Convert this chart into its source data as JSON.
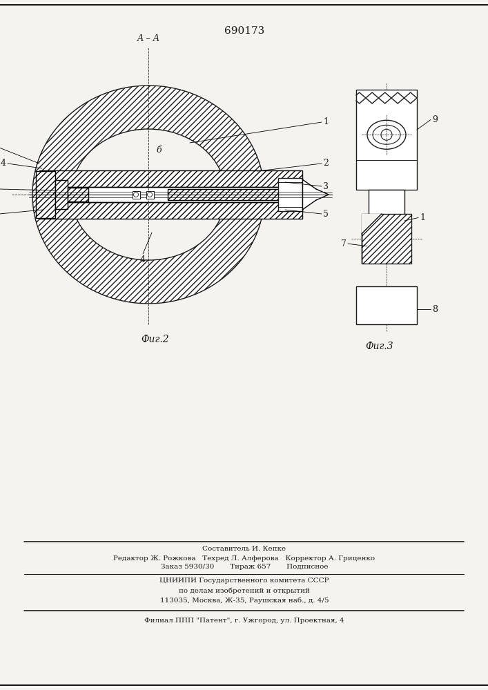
{
  "patent_number": "690173",
  "fig2_label": "Фиг.2",
  "fig3_label": "Фиг.3",
  "section_label": "А – А",
  "bg_color": "#f5f3ef",
  "line_color": "#1a1a1a",
  "footer_lines": [
    "Составитель И. Кепке",
    "Редактор Ж. Рожкова   Техред Л. Алферова   Корректор А. Гриценко",
    "Заказ 5930/30       Тираж 657       Подписное",
    "ЦНИИПИ Государственного комитета СССР",
    "по делам изобретений и открытий",
    "113035, Москва, Ж-35, Раушская наб., д. 4/5",
    "Филиал ППП \"Патент\", г. Ужгород, ул. Проектная, 4"
  ]
}
